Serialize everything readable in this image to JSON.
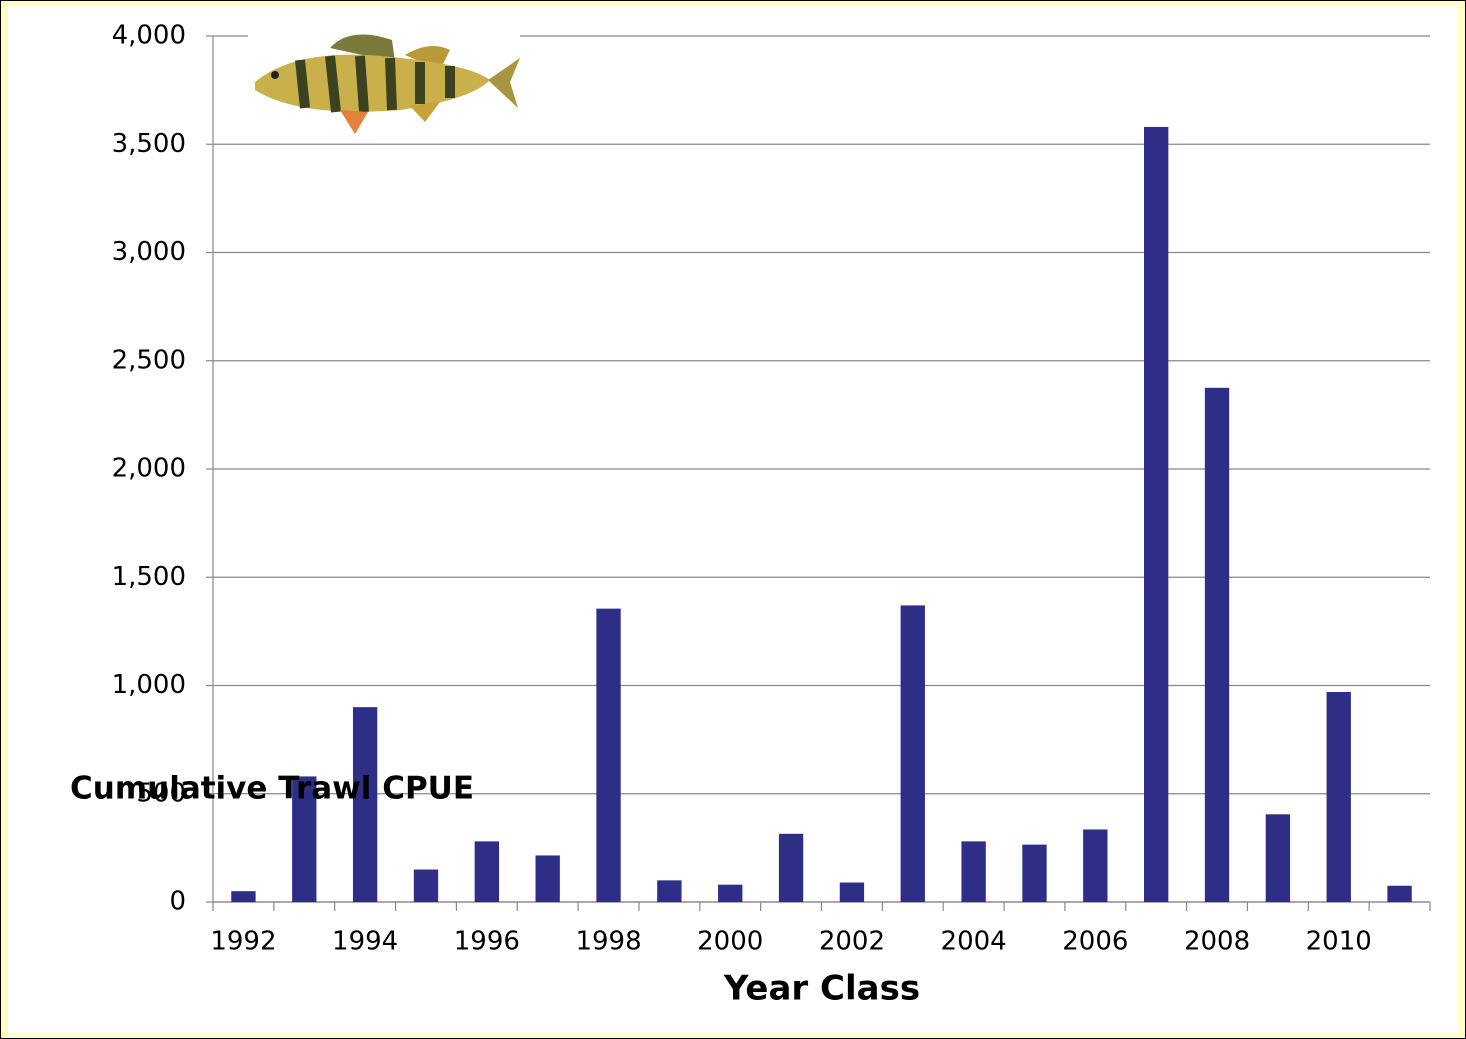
{
  "chart_data": {
    "type": "bar",
    "x_label": "Year Class",
    "y_label": "Cumulative Trawl CPUE",
    "categories": [
      "1992",
      null,
      "1994",
      null,
      "1996",
      null,
      "1998",
      null,
      "2000",
      null,
      "2002",
      null,
      "2004",
      null,
      "2006",
      null,
      "2008",
      null,
      "2010",
      null
    ],
    "values": [
      50,
      580,
      900,
      150,
      280,
      215,
      1355,
      100,
      80,
      315,
      90,
      1370,
      280,
      265,
      335,
      3580,
      2375,
      405,
      970,
      75
    ],
    "color": "#2e2e87",
    "ylim": [
      0,
      4000
    ],
    "yticks": [
      0,
      500,
      {
        "value": 1000,
        "label": "1,000"
      },
      {
        "value": 1500,
        "label": "1,500"
      },
      {
        "value": 2000,
        "label": "2,000"
      },
      {
        "value": 2500,
        "label": "2,500"
      },
      {
        "value": 3000,
        "label": "3,000"
      },
      {
        "value": 3500,
        "label": "3,500"
      },
      {
        "value": 4000,
        "label": "4,000"
      }
    ],
    "grid": true
  }
}
